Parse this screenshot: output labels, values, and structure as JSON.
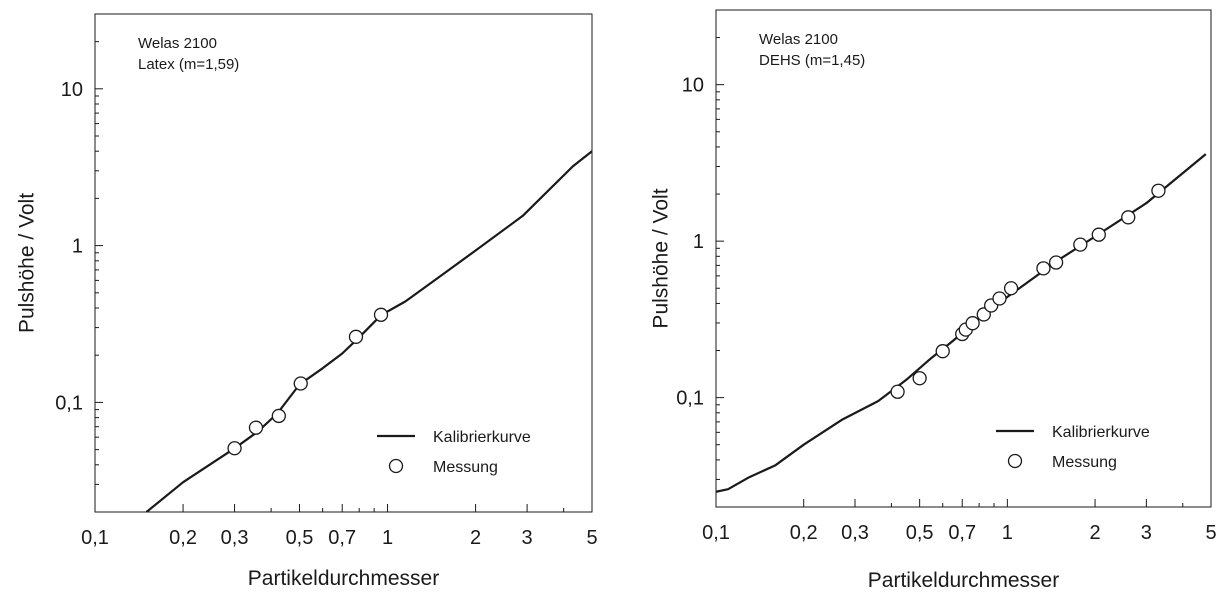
{
  "chart_data": [
    {
      "type": "line",
      "x_scale": "log",
      "y_scale": "log",
      "xlabel": "Partikeldurchmesser",
      "ylabel": "Pulshöhe / Volt",
      "annotation_lines": [
        "Welas 2100",
        "Latex (m=1,59)"
      ],
      "xlim": [
        0.1,
        5
      ],
      "ylim": [
        0.02,
        30
      ],
      "x_ticks": [
        {
          "value": 0.1,
          "label": "0,1"
        },
        {
          "value": 0.2,
          "label": "0,2"
        },
        {
          "value": 0.3,
          "label": "0,3"
        },
        {
          "value": 0.5,
          "label": "0,5"
        },
        {
          "value": 0.7,
          "label": "0,7"
        },
        {
          "value": 1,
          "label": "1"
        },
        {
          "value": 2,
          "label": "2"
        },
        {
          "value": 3,
          "label": "3"
        },
        {
          "value": 5,
          "label": "5"
        }
      ],
      "y_ticks": [
        {
          "value": 0.1,
          "label": "0,1"
        },
        {
          "value": 1,
          "label": "1"
        },
        {
          "value": 10,
          "label": "10"
        }
      ],
      "legend_position": "bottom-right",
      "series": [
        {
          "name": "Kalibrierkurve",
          "kind": "line",
          "x": [
            0.15,
            0.2,
            0.3,
            0.36,
            0.42,
            0.5,
            0.6,
            0.7,
            0.8,
            0.95,
            1.15,
            1.5,
            2.0,
            2.9,
            4.3,
            5.0
          ],
          "y": [
            0.02,
            0.031,
            0.051,
            0.065,
            0.085,
            0.13,
            0.165,
            0.205,
            0.26,
            0.36,
            0.44,
            0.63,
            0.93,
            1.55,
            3.2,
            4.0
          ]
        },
        {
          "name": "Messung",
          "kind": "scatter",
          "x": [
            0.3,
            0.355,
            0.425,
            0.505,
            0.78,
            0.95
          ],
          "y": [
            0.051,
            0.069,
            0.082,
            0.132,
            0.262,
            0.362
          ]
        }
      ]
    },
    {
      "type": "line",
      "x_scale": "log",
      "y_scale": "log",
      "xlabel": "Partikeldurchmesser",
      "ylabel": "Pulshöhe / Volt",
      "annotation_lines": [
        "Welas 2100",
        "DEHS (m=1,45)"
      ],
      "xlim": [
        0.1,
        5
      ],
      "ylim": [
        0.02,
        30
      ],
      "x_ticks": [
        {
          "value": 0.1,
          "label": "0,1"
        },
        {
          "value": 0.2,
          "label": "0,2"
        },
        {
          "value": 0.3,
          "label": "0,3"
        },
        {
          "value": 0.5,
          "label": "0,5"
        },
        {
          "value": 0.7,
          "label": "0,7"
        },
        {
          "value": 1,
          "label": "1"
        },
        {
          "value": 2,
          "label": "2"
        },
        {
          "value": 3,
          "label": "3"
        },
        {
          "value": 5,
          "label": "5"
        }
      ],
      "y_ticks": [
        {
          "value": 0.1,
          "label": "0,1"
        },
        {
          "value": 1,
          "label": "1"
        },
        {
          "value": 10,
          "label": "10"
        }
      ],
      "legend_position": "bottom-right",
      "series": [
        {
          "name": "Kalibrierkurve",
          "kind": "line",
          "x": [
            0.1,
            0.11,
            0.13,
            0.16,
            0.2,
            0.27,
            0.36,
            0.45,
            0.55,
            0.65,
            0.75,
            1.0,
            1.5,
            2.0,
            3.0,
            4.8
          ],
          "y": [
            0.025,
            0.026,
            0.031,
            0.037,
            0.05,
            0.072,
            0.095,
            0.13,
            0.18,
            0.23,
            0.29,
            0.44,
            0.76,
            1.07,
            1.75,
            3.6
          ]
        },
        {
          "name": "Messung",
          "kind": "scatter",
          "x": [
            0.42,
            0.5,
            0.6,
            0.7,
            0.72,
            0.76,
            0.83,
            0.88,
            0.94,
            1.03,
            1.33,
            1.47,
            1.78,
            2.06,
            2.6,
            3.3
          ],
          "y": [
            0.109,
            0.133,
            0.198,
            0.255,
            0.272,
            0.299,
            0.34,
            0.388,
            0.43,
            0.5,
            0.67,
            0.73,
            0.95,
            1.1,
            1.42,
            2.1
          ]
        }
      ]
    }
  ]
}
